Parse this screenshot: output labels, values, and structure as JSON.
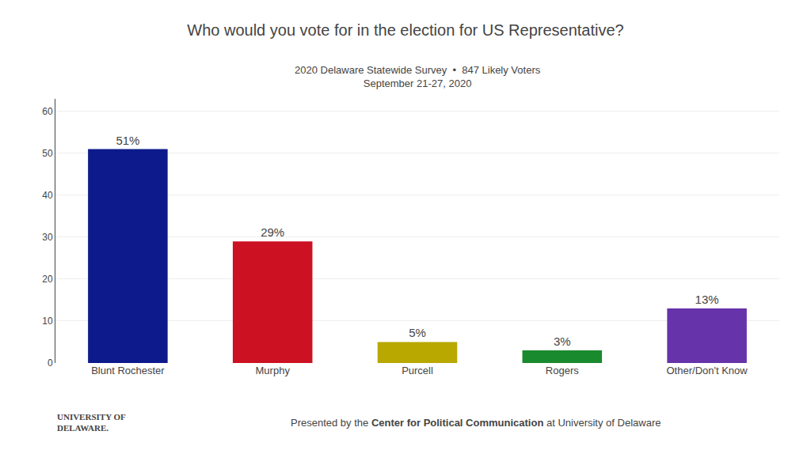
{
  "chart_data": {
    "type": "bar",
    "title": "Who would you vote for in the election for US Representative?",
    "subtitle": [
      "2020 Delaware Statewide Survey  •  847 Likely Voters",
      "September 21-27, 2020"
    ],
    "annotations": [
      "U",
      "NIVERSITY OF",
      "D",
      "ELAWARE.",
      "Presented by the ",
      "Center for Political Communication",
      " at University of Delaware"
    ],
    "categories": [
      "Blunt Rochester",
      "Murphy",
      "Purcell",
      "Rogers",
      "Other/Don't Know"
    ],
    "values": [
      51,
      29,
      5,
      3,
      13
    ],
    "value_labels": [
      "51%",
      "29%",
      "5%",
      "3%",
      "13%"
    ],
    "data_labels": true,
    "colors": [
      "#0d1a8b",
      "#cc1122",
      "#b8a800",
      "#1a8a2e",
      "#6633aa"
    ],
    "ylim": [
      0,
      63
    ],
    "yticks": [
      0,
      10,
      20,
      30,
      40,
      50,
      60
    ],
    "grid": true
  }
}
